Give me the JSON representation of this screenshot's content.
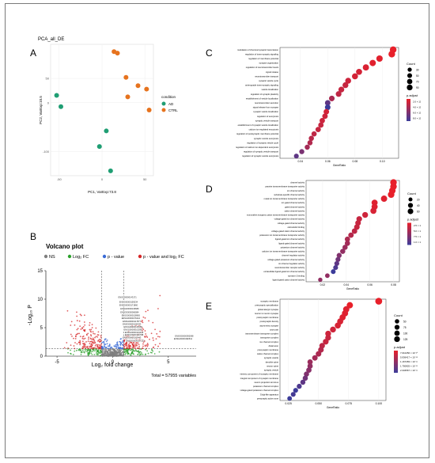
{
  "panel_letters": [
    "A",
    "B",
    "C",
    "D",
    "E"
  ],
  "colors": {
    "ad": "#1f9e73",
    "ctrl": "#e6731e",
    "ns": "#7f7f7f",
    "fc": "#2ca02c",
    "pv": "#3a6bd6",
    "both": "#d62728",
    "dot": "#e8202a",
    "dotlow": "#3c3c9a"
  },
  "chart_data": [
    {
      "type": "scatter",
      "title": "PCA_all_DE",
      "xlabel": "PC1, VarExp:73.8",
      "ylabel": "PC2, VarExp:10.5",
      "xlim": [
        -60,
        60
      ],
      "ylim": [
        -150,
        120
      ],
      "x_ticks": [
        "-50",
        "0",
        "50"
      ],
      "y_ticks": [
        "50",
        "0",
        "-100"
      ],
      "legend_title": "condition",
      "series": [
        {
          "name": "AD",
          "points": [
            [
              -53,
              15
            ],
            [
              -48,
              -8
            ],
            [
              5,
              -58
            ],
            [
              -3,
              -90
            ],
            [
              10,
              -140
            ]
          ]
        },
        {
          "name": "CTRL",
          "points": [
            [
              14,
              105
            ],
            [
              18,
              102
            ],
            [
              28,
              52
            ],
            [
              30,
              12
            ],
            [
              42,
              35
            ],
            [
              52,
              28
            ],
            [
              55,
              -15
            ]
          ]
        }
      ]
    },
    {
      "type": "scatter",
      "title": "Volcano plot",
      "xlabel": "Log₂ fold change",
      "ylabel": "-Log₁₀ P",
      "xlim": [
        -6,
        7.5
      ],
      "ylim": [
        0,
        15
      ],
      "x_ticks": [
        "-5",
        "0",
        "5"
      ],
      "y_ticks": [
        "0",
        "5",
        "10",
        "15"
      ],
      "legend": [
        "NS",
        "Log₂ FC",
        "p - value",
        "p - value and log₂ FC"
      ],
      "caption": "Total = 57955 variables",
      "thresholds": {
        "fc": [
          -1,
          1
        ],
        "p": 1.3
      },
      "labels": [
        "ENSG00000143171",
        "ENSG00000159234",
        "ENSG00000171860",
        "ENSG00000136689",
        "ENSG00000066084",
        "ENSG00000128965",
        "ENSG00000176244",
        "ENSG00000117877",
        "ENSG00000100433",
        "ENSG00000148168",
        "ENSG00000102595",
        "ENSG00000134318",
        "ENSG00000166788",
        "ENSG00000092098",
        "ENSG00000182541",
        "ENSG00000165443",
        "ENSG00000187123"
      ]
    },
    {
      "type": "scatter",
      "panel": "C",
      "xlabel": "GeneRatio",
      "x_ticks": [
        "0.04",
        "0.06",
        "0.08",
        "0.10"
      ],
      "xlim": [
        0.025,
        0.112
      ],
      "terms": [
        "modulation of chemical synaptic transmission",
        "regulation of trans-synaptic signaling",
        "regulation of membrane potential",
        "synapse organization",
        "regulation of neurotransmitter levels",
        "signal release",
        "neurotransmitter transport",
        "synaptic vesicle cycle",
        "anterograde trans-synaptic signaling",
        "vesicle localization",
        "regulation of synaptic plasticity",
        "establishment of vesicle localization",
        "neurotransmitter secretion",
        "signal release from synapse",
        "synaptic vesicle localization",
        "regulation of exocytosis",
        "synaptic vesicle transport",
        "establishment of synaptic vesicle localization",
        "calcium ion regulated exocytosis",
        "regulation of postsynaptic membrane potential",
        "synaptic vesicle exocytosis",
        "regulation of synaptic vesicle cycle",
        "regulation of calcium ion-dependent exocytosis",
        "regulation of synaptic vesicle transport",
        "regulation of synaptic vesicle exocytosis"
      ],
      "gene_ratio": [
        0.108,
        0.107,
        0.098,
        0.093,
        0.088,
        0.083,
        0.08,
        0.075,
        0.073,
        0.07,
        0.068,
        0.063,
        0.06,
        0.06,
        0.059,
        0.058,
        0.056,
        0.055,
        0.053,
        0.05,
        0.048,
        0.047,
        0.045,
        0.041,
        0.037
      ],
      "count": [
        85,
        85,
        75,
        72,
        68,
        64,
        62,
        58,
        56,
        54,
        52,
        49,
        46,
        46,
        45,
        44,
        43,
        42,
        41,
        38,
        37,
        36,
        35,
        32,
        28
      ],
      "p_adjust": [
        0,
        0,
        1e-05,
        1e-05,
        2e-05,
        3e-05,
        3e-05,
        4e-05,
        5e-05,
        5e-05,
        6e-05,
        9e-05,
        0.0002,
        0.00025,
        3e-05,
        4e-05,
        4e-05,
        5e-05,
        5e-05,
        6e-05,
        7e-05,
        8e-05,
        0.0001,
        0.00016,
        0.0002
      ],
      "size_legend": {
        "title": "Count",
        "labels": [
          "30",
          "50",
          "70",
          "90"
        ],
        "values": [
          30,
          50,
          70,
          90
        ]
      },
      "color_legend": {
        "title": "p.adjust",
        "labels": [
          "2.0 × 10⁻⁴",
          "4.0 × 10⁻⁴",
          "6.0 × 10⁻⁴",
          "8.0 × 10⁻⁴"
        ]
      },
      "p_max": 0.00025
    },
    {
      "type": "scatter",
      "panel": "D",
      "xlabel": "GeneRatio",
      "x_ticks": [
        "0.02",
        "0.04",
        "0.06",
        "0.08"
      ],
      "xlim": [
        0.006,
        0.085
      ],
      "terms": [
        "channel activity",
        "passive transmembrane transporter activity",
        "ion channel activity",
        "substrate-specific channel activity",
        "metal ion transmembrane transporter activity",
        "ion gated channel activity",
        "gated channel activity",
        "cation channel activity",
        "monovalent inorganic cation transmembrane transporter activity",
        "voltage-gated ion channel activity",
        "voltage-gated channel activity",
        "calmodulin binding",
        "voltage-gated cation channel activity",
        "potassium ion transmembrane transporter activity",
        "ligand-gated ion channel activity",
        "ligand-gated channel activity",
        "potassium channel activity",
        "calcium ion transmembrane transporter activity",
        "channel regulator activity",
        "voltage-gated potassium channel activity",
        "ion channel regulator activity",
        "neurotransmitter receptor activity",
        "extracellular ligand-gated ion channel activity",
        "syntaxin-1 binding",
        "ligand-gated cation channel activity"
      ],
      "gene_ratio": [
        0.08,
        0.08,
        0.079,
        0.078,
        0.072,
        0.064,
        0.064,
        0.063,
        0.056,
        0.051,
        0.05,
        0.049,
        0.047,
        0.044,
        0.041,
        0.041,
        0.039,
        0.037,
        0.034,
        0.033,
        0.032,
        0.031,
        0.029,
        0.024,
        0.018
      ],
      "count": [
        58,
        58,
        57,
        57,
        52,
        47,
        47,
        46,
        41,
        37,
        36,
        36,
        34,
        32,
        30,
        30,
        28,
        27,
        25,
        24,
        23,
        22,
        21,
        18,
        14
      ],
      "p_adjust": [
        0,
        0,
        0,
        0,
        1e-05,
        1e-05,
        1e-05,
        2e-05,
        3e-05,
        4e-05,
        4e-05,
        4e-05,
        5e-05,
        6e-05,
        7e-05,
        8e-05,
        9e-05,
        0.0001,
        0.00012,
        0.00014,
        0.00016,
        0.00018,
        0.0002,
        0.0001,
        0.0001
      ],
      "size_legend": {
        "title": "Count",
        "labels": [
          "20",
          "40",
          "60"
        ],
        "values": [
          20,
          40,
          60
        ]
      },
      "color_legend": {
        "title": "p.adjust",
        "labels": [
          "2.5 × 10⁻⁵",
          "5.0 × 10⁻⁵",
          "7.5 × 10⁻⁵",
          "1.0 × 10⁻⁴"
        ]
      },
      "p_max": 0.0002
    },
    {
      "type": "scatter",
      "panel": "E",
      "xlabel": "GeneRatio",
      "x_ticks": [
        "0.025",
        "0.050",
        "0.075",
        "0.100"
      ],
      "xlim": [
        0.018,
        0.106
      ],
      "terms": [
        "synaptic membrane",
        "presynaptic specialization",
        "glutamatergic synapse",
        "neuron to neuron synapse",
        "postsynaptic membrane",
        "postsynaptic density",
        "asymmetric synapse",
        "axon part",
        "transmembrane transporter complex",
        "transporter complex",
        "ion channel complex",
        "distal axon",
        "presynaptic membrane",
        "cation channel complex",
        "synaptic vesicle",
        "dendrite spine",
        "neuron spine",
        "synaptic vesicle",
        "intrinsic component of synaptic membrane",
        "integral component of synaptic membrane",
        "neuron projection terminus",
        "potassium channel complex",
        "voltage-gated potassium channel complex",
        "Golgi-like apparatus",
        "presynaptic active zone"
      ],
      "gene_ratio": [
        0.1,
        0.076,
        0.073,
        0.072,
        0.07,
        0.068,
        0.066,
        0.062,
        0.058,
        0.058,
        0.056,
        0.053,
        0.052,
        0.05,
        0.047,
        0.043,
        0.043,
        0.042,
        0.04,
        0.039,
        0.037,
        0.034,
        0.031,
        0.029,
        0.026
      ],
      "count": [
        130,
        100,
        96,
        94,
        92,
        89,
        86,
        81,
        76,
        76,
        73,
        69,
        68,
        65,
        61,
        56,
        56,
        55,
        52,
        51,
        48,
        44,
        40,
        38,
        34
      ],
      "p_adjust": [
        0,
        0,
        1e-05,
        1e-05,
        1e-05,
        2e-05,
        2e-05,
        3e-05,
        3e-05,
        4e-05,
        4e-05,
        5e-05,
        6e-05,
        7e-05,
        8e-05,
        9e-05,
        0.0001,
        0.00011,
        0.00012,
        0.00014,
        0.00016,
        0.00018,
        0.0002,
        0.00019,
        0.0002
      ],
      "size_legend": {
        "title": "Count",
        "labels": [
          "50",
          "75",
          "100",
          "125"
        ],
        "values": [
          50,
          75,
          100,
          125
        ]
      },
      "color_legend": {
        "title": "p.adjust",
        "labels": [
          "7.010256 × 10⁻²⁰",
          "5.936417 × 10⁻¹²",
          "1.167283 × 10⁻¹¹",
          "1.750825 × 10⁻¹¹",
          "2.334567 × 10⁻¹¹"
        ]
      },
      "p_max": 0.0002
    }
  ]
}
